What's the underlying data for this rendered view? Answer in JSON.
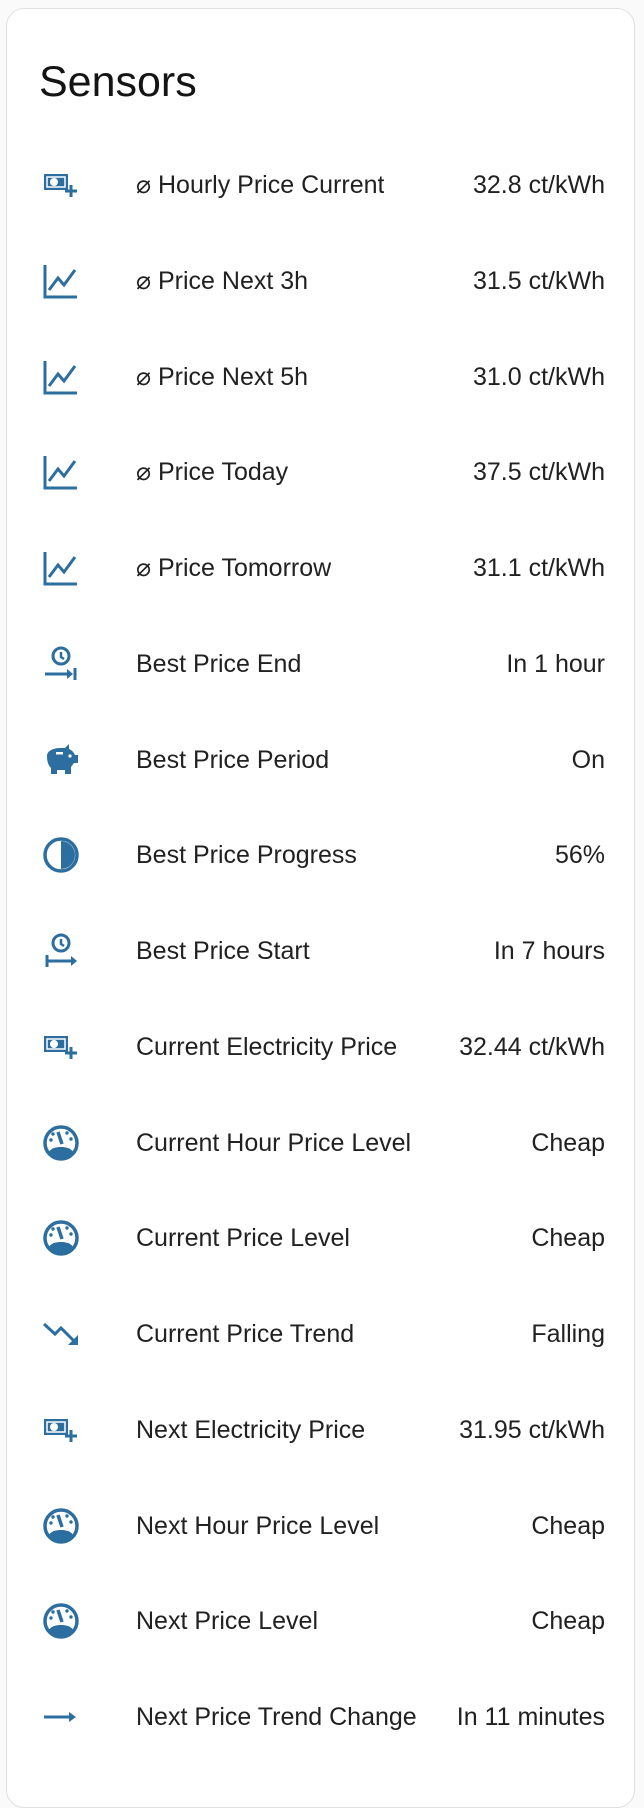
{
  "card": {
    "title": "Sensors"
  },
  "colors": {
    "icon": "#2c6e9f",
    "text": "#212121"
  },
  "sensors": [
    {
      "icon": "cash-plus-icon",
      "name": "⌀ Hourly Price Current",
      "value": "32.8 ct/kWh"
    },
    {
      "icon": "chart-line-icon",
      "name": "⌀ Price Next 3h",
      "value": "31.5 ct/kWh"
    },
    {
      "icon": "chart-line-icon",
      "name": "⌀ Price Next 5h",
      "value": "31.0 ct/kWh"
    },
    {
      "icon": "chart-line-icon",
      "name": "⌀ Price Today",
      "value": "37.5 ct/kWh"
    },
    {
      "icon": "chart-line-icon",
      "name": "⌀ Price Tomorrow",
      "value": "31.1 ct/kWh"
    },
    {
      "icon": "clock-end-icon",
      "name": "Best Price End",
      "value": "In 1 hour"
    },
    {
      "icon": "piggy-bank-icon",
      "name": "Best Price Period",
      "value": "On"
    },
    {
      "icon": "circle-half-icon",
      "name": "Best Price Progress",
      "value": "56%"
    },
    {
      "icon": "clock-start-icon",
      "name": "Best Price Start",
      "value": "In 7 hours"
    },
    {
      "icon": "cash-plus-icon",
      "name": "Current Electricity Price",
      "value": "32.44 ct/kWh"
    },
    {
      "icon": "gauge-icon",
      "name": "Current Hour Price Level",
      "value": "Cheap"
    },
    {
      "icon": "gauge-icon",
      "name": "Current Price Level",
      "value": "Cheap"
    },
    {
      "icon": "trending-down-icon",
      "name": "Current Price Trend",
      "value": "Falling"
    },
    {
      "icon": "cash-plus-icon",
      "name": "Next Electricity Price",
      "value": "31.95 ct/kWh"
    },
    {
      "icon": "gauge-icon",
      "name": "Next Hour Price Level",
      "value": "Cheap"
    },
    {
      "icon": "gauge-icon",
      "name": "Next Price Level",
      "value": "Cheap"
    },
    {
      "icon": "arrow-right-icon",
      "name": "Next Price Trend Change",
      "value": "In 11 minutes"
    }
  ]
}
